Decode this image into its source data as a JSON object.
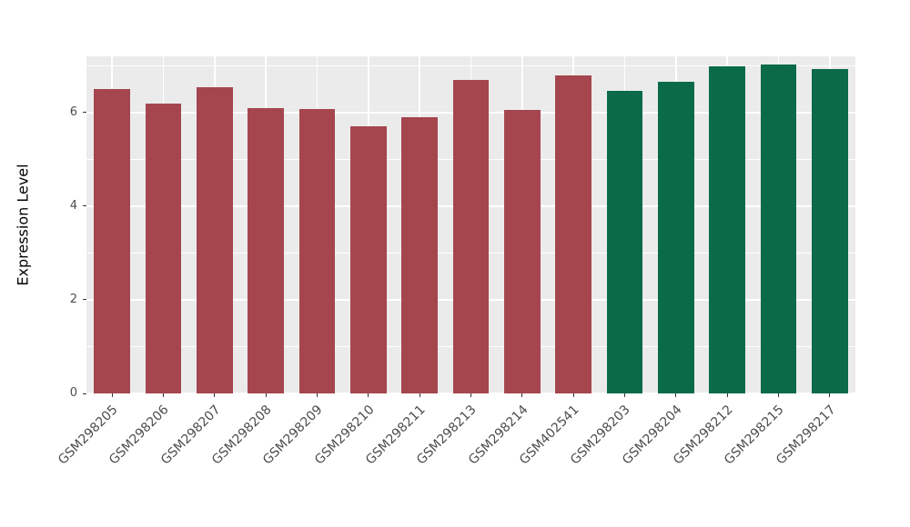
{
  "chart_data": {
    "type": "bar",
    "title": "",
    "xlabel": "",
    "ylabel": "Expression Level",
    "ylim": [
      0,
      7.2
    ],
    "y_major_ticks": [
      0,
      2,
      4,
      6
    ],
    "y_minor_ticks": [
      1,
      3,
      5,
      7
    ],
    "grid": true,
    "legend_position": "none",
    "panel_background": "#EBEBEB",
    "grid_color": "#FFFFFF",
    "categories": [
      "GSM298205",
      "GSM298206",
      "GSM298207",
      "GSM298208",
      "GSM298209",
      "GSM298210",
      "GSM298211",
      "GSM298213",
      "GSM298214",
      "GSM402541",
      "GSM298203",
      "GSM298204",
      "GSM298212",
      "GSM298215",
      "GSM298217"
    ],
    "values": [
      6.5,
      6.2,
      6.55,
      6.1,
      6.08,
      5.7,
      5.9,
      6.7,
      6.05,
      6.8,
      6.47,
      6.65,
      6.98,
      7.02,
      6.92
    ],
    "bar_colors": [
      "#A5464F",
      "#A5464F",
      "#A5464F",
      "#A5464F",
      "#A5464F",
      "#A5464F",
      "#A5464F",
      "#A5464F",
      "#A5464F",
      "#A5464F",
      "#0B6B49",
      "#0B6B49",
      "#0B6B49",
      "#0B6B49",
      "#0B6B49"
    ],
    "group_colors": {
      "group1": "#A5464F",
      "group2": "#0B6B49"
    }
  }
}
